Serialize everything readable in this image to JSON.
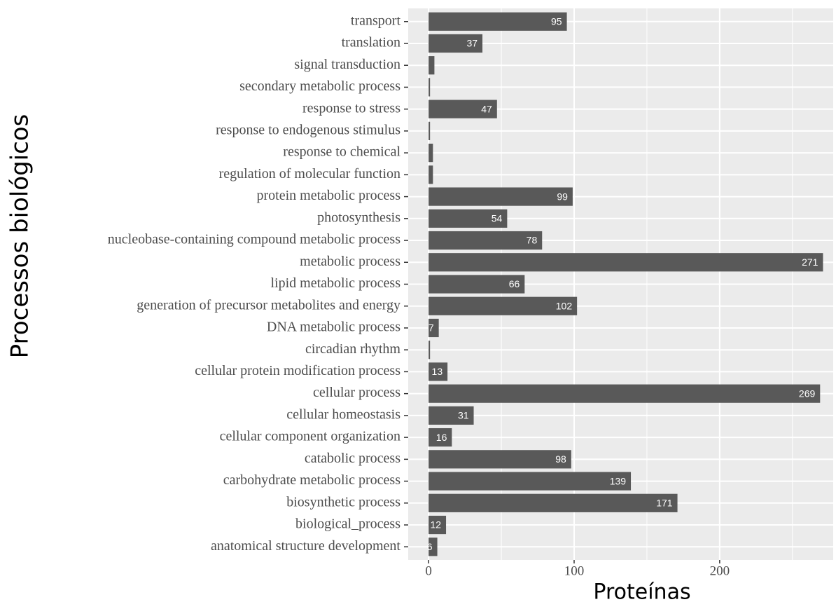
{
  "chart_data": {
    "type": "barh",
    "x_label": "Proteínas",
    "y_label": "Processos biológicos",
    "categories": [
      "transport",
      "translation",
      "signal transduction",
      "secondary metabolic process",
      "response to stress",
      "response to endogenous stimulus",
      "response to chemical",
      "regulation of molecular function",
      "protein metabolic process",
      "photosynthesis",
      "nucleobase-containing compound metabolic process",
      "metabolic process",
      "lipid metabolic process",
      "generation of precursor metabolites and energy",
      "DNA metabolic process",
      "circadian rhythm",
      "cellular protein modification process",
      "cellular process",
      "cellular homeostasis",
      "cellular component organization",
      "catabolic process",
      "carbohydrate metabolic process",
      "biosynthetic process",
      "biological_process",
      "anatomical structure development"
    ],
    "values": [
      95,
      37,
      4,
      1,
      47,
      1,
      3,
      3,
      99,
      54,
      78,
      271,
      66,
      102,
      7,
      1,
      13,
      269,
      31,
      16,
      98,
      139,
      171,
      12,
      6
    ],
    "color": "#595959",
    "xlim": [
      -14,
      278
    ],
    "xticks": [
      0,
      100,
      200
    ],
    "xminor": [
      50,
      150,
      250
    ],
    "grid": true
  }
}
